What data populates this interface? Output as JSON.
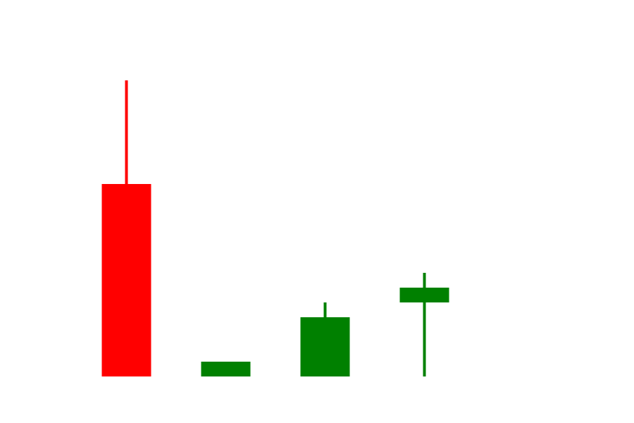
{
  "chart_data": {
    "type": "candlestick",
    "title": "",
    "xlabel": "",
    "ylabel": "",
    "axes_visible": false,
    "grid": false,
    "ylim": [
      0,
      22
    ],
    "colors": {
      "up": "#008000",
      "down": "#ff0000",
      "background": "#ffffff"
    },
    "candles": [
      {
        "index": 0,
        "open": 13,
        "close": 0,
        "high": 20,
        "low": 0
      },
      {
        "index": 1,
        "open": 0,
        "close": 1,
        "high": 1,
        "low": 0
      },
      {
        "index": 2,
        "open": 0,
        "close": 4,
        "high": 5,
        "low": 0
      },
      {
        "index": 3,
        "open": 5,
        "close": 6,
        "high": 7,
        "low": 0
      }
    ]
  }
}
